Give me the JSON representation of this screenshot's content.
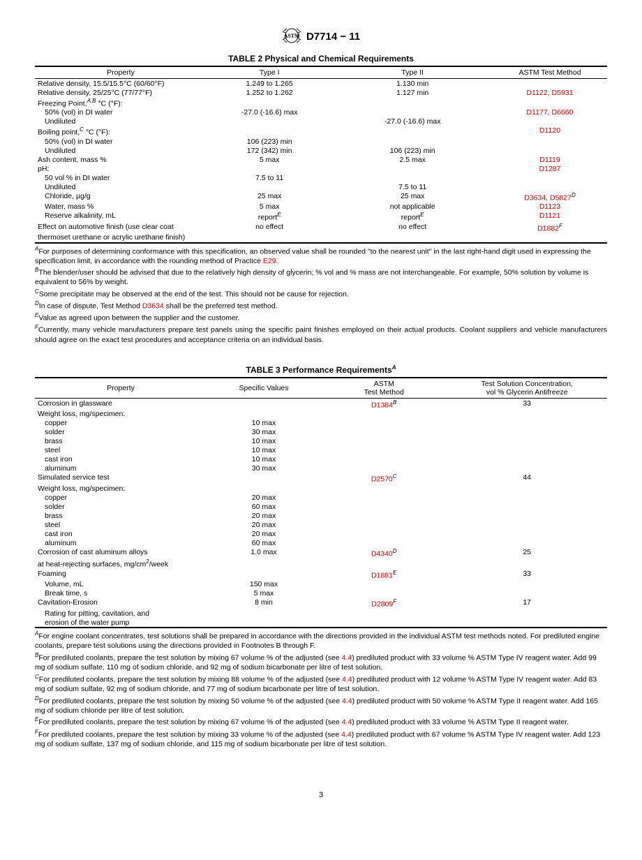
{
  "header": {
    "doc_id": "D7714 − 11"
  },
  "table2": {
    "title": "TABLE 2 Physical and Chemical Requirements",
    "headers": {
      "property": "Property",
      "type1": "Type I",
      "type2": "Type II",
      "method": "ASTM Test Method"
    },
    "rows": [
      {
        "p": "Relative density, 15.5/15.5°C (60/60°F)",
        "i": 0,
        "t1": "1.249 to 1.265",
        "t2": "1.130 min",
        "m": ""
      },
      {
        "p": "Relative density, 25/25°C (77/77°F)",
        "i": 0,
        "t1": "1.252 to 1.262",
        "t2": "1.127 min",
        "m": "D1122, D5931",
        "ml": true
      },
      {
        "p": "Freezing Point,",
        "sup": "A,B",
        "p2": " °C (°F):",
        "i": 0,
        "t1": "",
        "t2": "",
        "m": ""
      },
      {
        "p": "50% (vol) in DI water",
        "i": 1,
        "t1": "-27.0 (-16.6) max",
        "t2": "",
        "m": "D1177, D6660",
        "ml": true
      },
      {
        "p": "Undiluted",
        "i": 1,
        "t1": "",
        "t2": "-27.0 (-16.6) max",
        "m": ""
      },
      {
        "p": "Boiling point,",
        "sup": "C",
        "p2": " °C (°F):",
        "i": 0,
        "t1": "",
        "t2": "",
        "m": "D1120",
        "ml": true
      },
      {
        "p": "50% (vol) in DI water",
        "i": 1,
        "t1": "106 (223) min",
        "t2": "",
        "m": ""
      },
      {
        "p": "Undiluted",
        "i": 1,
        "t1": "172 (342) min",
        "t2": "106 (223) min",
        "m": ""
      },
      {
        "p": "Ash content, mass %",
        "i": 0,
        "t1": "5 max",
        "t2": "2.5 max",
        "m": "D1119",
        "ml": true
      },
      {
        "p": "pH:",
        "i": 0,
        "t1": "",
        "t2": "",
        "m": "D1287",
        "ml": true
      },
      {
        "p": "50 vol % in DI water",
        "i": 1,
        "t1": "7.5 to 11",
        "t2": "",
        "m": ""
      },
      {
        "p": "Undiluted",
        "i": 1,
        "t1": "",
        "t2": "7.5 to 11",
        "m": ""
      },
      {
        "p": "Chloride, µg/g",
        "i": 1,
        "t1": "25 max",
        "t2": "25 max",
        "m": "D3634, D5827",
        "msup": "D",
        "ml": true
      },
      {
        "p": "Water, mass %",
        "i": 1,
        "t1": "5 max",
        "t2": "not applicable",
        "m": "D1123",
        "ml": true
      },
      {
        "p": "Reserve alkalinity, mL",
        "i": 1,
        "t1": "report",
        "t1sup": "E",
        "t2": "report",
        "t2sup": "E",
        "m": "D1121",
        "ml": true
      },
      {
        "p": "Effect on automotive finish (use clear coat",
        "i": 0,
        "t1": "no effect",
        "t2": "no effect",
        "m": "D1882",
        "msup": "F",
        "ml": true
      },
      {
        "p": "thermoset urethane or acrylic urethane finish)",
        "i": 0,
        "t1": "",
        "t2": "",
        "m": ""
      }
    ],
    "footnotes": [
      {
        "l": "A",
        "t": "For purposes of determining conformance with this specification, an observed value shall be rounded \"to the nearest unit\" in the last right-hand digit used in expressing the specification limit, in accordance with the rounding method of Practice ",
        "link": "E29",
        "t2": "."
      },
      {
        "l": "B",
        "t": "The blender/user should be advised that due to the relatively high density of glycerin; % vol and % mass are not interchangeable. For example, 50% solution by volume is equivalent to 56% by weight."
      },
      {
        "l": "C",
        "t": "Some precipitate may be observed at the end of the test. This should not be cause for rejection."
      },
      {
        "l": "D",
        "t": "In case of dispute, Test Method ",
        "link": "D3634",
        "t2": " shall be the preferred test method."
      },
      {
        "l": "E",
        "t": "Value as agreed upon between the supplier and the customer."
      },
      {
        "l": "F",
        "t": "Currently, many vehicle manufacturers prepare test panels using the specific paint finishes employed on their actual products. Coolant suppliers and vehicle manufacturers should agree on the exact test procedures and acceptance criteria on an individual basis.",
        "just": true
      }
    ]
  },
  "table3": {
    "title": "TABLE 3 Performance Requirements",
    "title_sup": "A",
    "headers": {
      "property": "Property",
      "values": "Specific Values",
      "method_l1": "ASTM",
      "method_l2": "Test Method",
      "conc_l1": "Test Solution Concentration,",
      "conc_l2": "vol % Glycerin Antifreeze"
    },
    "rows": [
      {
        "p": "Corrosion in glassware",
        "i": 0,
        "v": "",
        "m": "D1384",
        "msup": "B",
        "ml": true,
        "c": "33"
      },
      {
        "p": "Weight loss, mg/specimen:",
        "i": 0,
        "v": "",
        "m": "",
        "c": ""
      },
      {
        "p": "copper",
        "i": 1,
        "v": "10 max",
        "m": "",
        "c": ""
      },
      {
        "p": "solder",
        "i": 1,
        "v": "30 max",
        "m": "",
        "c": ""
      },
      {
        "p": "brass",
        "i": 1,
        "v": "10 max",
        "m": "",
        "c": ""
      },
      {
        "p": "steel",
        "i": 1,
        "v": "10 max",
        "m": "",
        "c": ""
      },
      {
        "p": "cast iron",
        "i": 1,
        "v": "10 max",
        "m": "",
        "c": ""
      },
      {
        "p": "aluminum",
        "i": 1,
        "v": "30 max",
        "m": "",
        "c": ""
      },
      {
        "p": "Simulated service test",
        "i": 0,
        "v": "",
        "m": "D2570",
        "msup": "C",
        "ml": true,
        "c": "44"
      },
      {
        "p": "Weight loss, mg/specimen:",
        "i": 0,
        "v": "",
        "m": "",
        "c": ""
      },
      {
        "p": "copper",
        "i": 1,
        "v": "20 max",
        "m": "",
        "c": ""
      },
      {
        "p": "solder",
        "i": 1,
        "v": "60 max",
        "m": "",
        "c": ""
      },
      {
        "p": "brass",
        "i": 1,
        "v": "20 max",
        "m": "",
        "c": ""
      },
      {
        "p": "steel",
        "i": 1,
        "v": "20 max",
        "m": "",
        "c": ""
      },
      {
        "p": "cast iron",
        "i": 1,
        "v": "20 max",
        "m": "",
        "c": ""
      },
      {
        "p": "aluminum",
        "i": 1,
        "v": "60 max",
        "m": "",
        "c": ""
      },
      {
        "p": "Corrosion of cast aluminum alloys",
        "i": 0,
        "v": "1.0 max",
        "m": "D4340",
        "msup": "D",
        "ml": true,
        "c": "25"
      },
      {
        "p": "at heat-rejecting surfaces, mg/cm",
        "sup2": "2",
        "p2": "/week",
        "i": 0,
        "v": "",
        "m": "",
        "c": ""
      },
      {
        "p": "Foaming",
        "i": 0,
        "v": "",
        "m": "D1881",
        "msup": "E",
        "ml": true,
        "c": "33"
      },
      {
        "p": "Volume, mL",
        "i": 1,
        "v": "150 max",
        "m": "",
        "c": ""
      },
      {
        "p": "Break time, s",
        "i": 1,
        "v": "5 max",
        "m": "",
        "c": ""
      },
      {
        "p": "Cavitation-Erosion",
        "i": 0,
        "v": "8 min",
        "m": "D2809",
        "msup": "F",
        "ml": true,
        "c": "17"
      },
      {
        "p": "Rating for pitting, cavitation, and",
        "i": 1,
        "v": "",
        "m": "",
        "c": ""
      },
      {
        "p": "erosion of the water pump",
        "i": 1,
        "v": "",
        "m": "",
        "c": ""
      }
    ],
    "footnotes": [
      {
        "l": "A",
        "t": "For engine coolant concentrates, test solutions shall be prepared in accordance with the directions provided in the individual ASTM test methods noted. For prediluted engine coolants, prepare test solutions using the directions provided in Footnotes B through F."
      },
      {
        "l": "B",
        "t": "For prediluted coolants, prepare the test solution by mixing 67 volume % of the adjusted (see ",
        "link": "4.4",
        "t2": ") prediluted product with 33 volume % ASTM Type IV reagent water. Add 99 mg of sodium sulfate, 110 mg of sodium chloride, and 92 mg of sodium bicarbonate per litre of test solution."
      },
      {
        "l": "C",
        "t": "For prediluted coolants, prepare the test solution by mixing 88 volume % of the adjusted (see ",
        "link": "4.4",
        "t2": ") prediluted product with 12 volume % ASTM Type IV reagent water. Add 83 mg of sodium sulfate, 92 mg of sodium chloride, and 77 mg of sodium bicarbonate per litre of test solution."
      },
      {
        "l": "D",
        "t": "For prediluted coolants, prepare the test solution by mixing 50 volume % of the adjusted (see ",
        "link": "4.4",
        "t2": ") prediluted product with 50 volume % ASTM Type II reagent water. Add 165 mg of sodium chloride per litre of test solution."
      },
      {
        "l": "E",
        "t": "For prediluted coolants, prepare the test solution by mixing 67 volume % of the adjusted (see ",
        "link": "4.4",
        "t2": ") prediluted product with 33 volume % ASTM Type II reagent water."
      },
      {
        "l": "F",
        "t": "For prediluted coolants, prepare the test solution by mixing 33 volume % of the adjusted (see ",
        "link": "4.4",
        "t2": ") prediluted product with 67 volume % ASTM Type IV reagent water. Add 123 mg of sodium sulfate, 137 mg of sodium chloride, and 115 mg of sodium bicarbonate per litre of test solution."
      }
    ]
  },
  "page_number": "3"
}
